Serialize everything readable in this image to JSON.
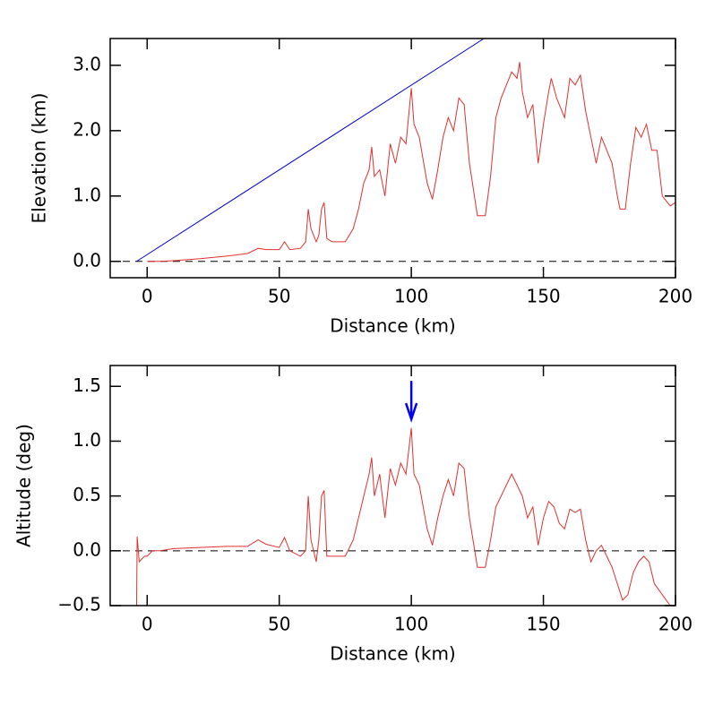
{
  "chart_data": [
    {
      "type": "line",
      "xlabel": "Distance (km)",
      "ylabel": "Elevation (km)",
      "xlim": [
        -14,
        200
      ],
      "ylim": [
        -0.25,
        3.41
      ],
      "xticks": [
        0,
        50,
        100,
        150,
        200
      ],
      "yticks": [
        {
          "value": 0,
          "label": "0.0"
        },
        {
          "value": 1,
          "label": "1.0"
        },
        {
          "value": 2,
          "label": "2.0"
        },
        {
          "value": 3,
          "label": "3.0"
        }
      ],
      "hline": 0,
      "color": "#e03030",
      "x": [
        0,
        5,
        10,
        20,
        30,
        38,
        42,
        45,
        50,
        52,
        54,
        58,
        60,
        61,
        62,
        64,
        65,
        66,
        67,
        68,
        70,
        75,
        78,
        80,
        82,
        84,
        85,
        86,
        88,
        90,
        92,
        94,
        96,
        98,
        100,
        101,
        103,
        106,
        108,
        110,
        112,
        114,
        116,
        118,
        120,
        122,
        125,
        128,
        130,
        132,
        134,
        136,
        138,
        140,
        141,
        142,
        144,
        146,
        148,
        150,
        152,
        153,
        155,
        158,
        160,
        162,
        164,
        166,
        168,
        170,
        172,
        174,
        176,
        178,
        179,
        181,
        183,
        185,
        187,
        189,
        191,
        193,
        195,
        198,
        200
      ],
      "values": [
        0,
        0,
        0.01,
        0.04,
        0.08,
        0.12,
        0.2,
        0.18,
        0.18,
        0.3,
        0.18,
        0.2,
        0.3,
        0.8,
        0.5,
        0.3,
        0.4,
        0.8,
        0.9,
        0.35,
        0.3,
        0.3,
        0.5,
        0.8,
        1.2,
        1.4,
        1.75,
        1.3,
        1.4,
        1.0,
        1.8,
        1.5,
        1.9,
        1.8,
        2.65,
        2.1,
        1.9,
        1.2,
        0.95,
        1.4,
        1.9,
        2.2,
        2.0,
        2.5,
        2.4,
        1.5,
        0.7,
        0.7,
        1.3,
        2.2,
        2.5,
        2.7,
        2.9,
        2.8,
        3.05,
        2.6,
        2.2,
        2.4,
        1.5,
        2.1,
        2.6,
        2.8,
        2.5,
        2.2,
        2.8,
        2.7,
        2.85,
        2.3,
        1.9,
        1.5,
        1.9,
        1.7,
        1.5,
        1.0,
        0.8,
        0.8,
        1.5,
        2.05,
        1.9,
        2.1,
        1.7,
        1.7,
        1.0,
        0.85,
        0.9
      ],
      "reference_line": {
        "x": [
          -4,
          127.5
        ],
        "values": [
          0,
          3.41
        ],
        "color": "#0000cc"
      }
    },
    {
      "type": "line",
      "xlabel": "Distance (km)",
      "ylabel": "Altitude (deg)",
      "xlim": [
        -14,
        200
      ],
      "ylim": [
        -0.5,
        1.69
      ],
      "xticks": [
        0,
        50,
        100,
        150,
        200
      ],
      "yticks": [
        {
          "value": -0.5,
          "label": "−0.5"
        },
        {
          "value": 0,
          "label": "0.0"
        },
        {
          "value": 0.5,
          "label": "0.5"
        },
        {
          "value": 1,
          "label": "1.0"
        },
        {
          "value": 1.5,
          "label": "1.5"
        }
      ],
      "hline": 0,
      "color": "#e03030",
      "x": [
        -4,
        -3.8,
        -3,
        -1,
        0,
        2,
        5,
        10,
        20,
        30,
        38,
        42,
        45,
        50,
        52,
        54,
        58,
        60,
        61,
        62,
        64,
        65,
        66,
        67,
        68,
        70,
        75,
        78,
        80,
        82,
        84,
        85,
        86,
        88,
        90,
        92,
        94,
        96,
        98,
        100,
        101,
        103,
        106,
        108,
        110,
        112,
        114,
        116,
        118,
        120,
        122,
        125,
        128,
        130,
        132,
        134,
        136,
        138,
        140,
        142,
        144,
        146,
        148,
        150,
        152,
        154,
        156,
        158,
        160,
        162,
        164,
        166,
        168,
        170,
        172,
        174,
        176,
        178,
        180,
        182,
        184,
        186,
        188,
        190,
        192,
        195,
        198,
        200
      ],
      "values": [
        -0.5,
        0.13,
        -0.1,
        -0.05,
        -0.05,
        0,
        0,
        0.02,
        0.03,
        0.04,
        0.04,
        0.1,
        0.06,
        0.03,
        0.12,
        0,
        -0.05,
        0,
        0.5,
        0.1,
        -0.1,
        0.1,
        0.5,
        0.55,
        -0.05,
        -0.05,
        -0.05,
        0.1,
        0.3,
        0.5,
        0.7,
        0.85,
        0.5,
        0.7,
        0.3,
        0.75,
        0.6,
        0.8,
        0.7,
        1.12,
        0.7,
        0.6,
        0.2,
        0.05,
        0.3,
        0.5,
        0.65,
        0.5,
        0.8,
        0.75,
        0.3,
        -0.15,
        -0.15,
        0.1,
        0.4,
        0.5,
        0.6,
        0.7,
        0.6,
        0.5,
        0.3,
        0.4,
        0.05,
        0.3,
        0.45,
        0.4,
        0.25,
        0.2,
        0.38,
        0.35,
        0.38,
        0.1,
        -0.1,
        0,
        0.05,
        -0.05,
        -0.15,
        -0.3,
        -0.45,
        -0.4,
        -0.2,
        -0.1,
        -0.05,
        -0.1,
        -0.3,
        -0.4,
        -0.5,
        -0.5
      ],
      "arrow": {
        "x": 100,
        "y": [
          1.55,
          1.2
        ],
        "color": "#0000ee"
      }
    }
  ]
}
